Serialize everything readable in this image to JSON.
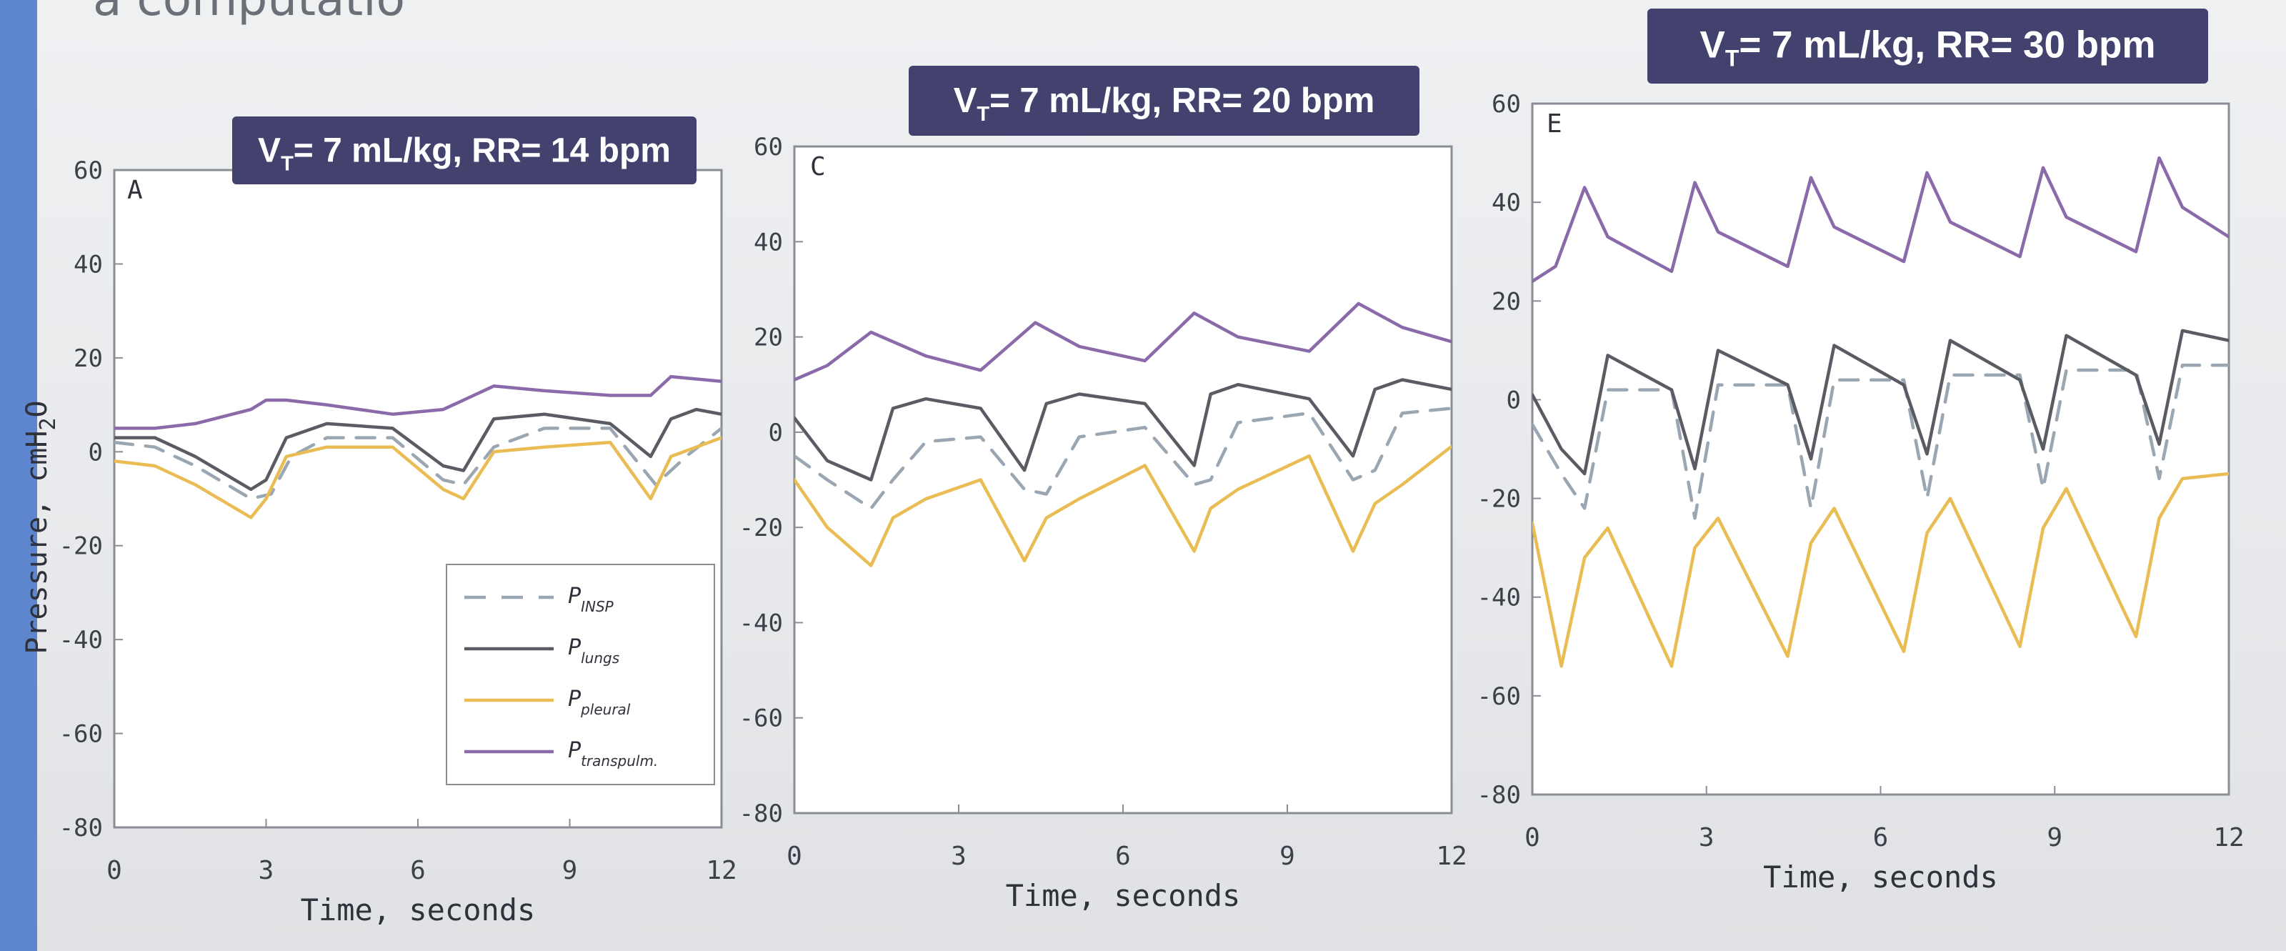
{
  "slide": {
    "cut_text": "a computatio",
    "accent_color": "#5d86cf",
    "badge_color": "#43416e"
  },
  "colors": {
    "P_INSP": "#9aa7b3",
    "P_lungs": "#5b5b63",
    "P_pleural": "#e9bd53",
    "P_transpulm": "#8a6aa8"
  },
  "chart_data": [
    {
      "type": "line",
      "panel": "A",
      "badge": "V_T= 7 mL/kg, RR= 14 bpm",
      "ylabel": "Pressure, cmH2O",
      "xlabel": "Time, seconds",
      "xlim": [
        0,
        12
      ],
      "ylim": [
        -80,
        60
      ],
      "xticks": [
        "0",
        "3",
        "6",
        "9",
        "12"
      ],
      "yticks": [
        "-80",
        "-60",
        "-40",
        "-20",
        "0",
        "20",
        "40",
        "60"
      ],
      "grid": false,
      "legend": {
        "placement": "lower-right",
        "entries": [
          "P_INSP",
          "P_lungs",
          "P_pleural",
          "P_transpulm."
        ]
      },
      "series": [
        {
          "name": "P_INSP",
          "style": "dashed",
          "x": [
            0,
            0.8,
            1.6,
            2.7,
            3.1,
            3.5,
            4.2,
            5.5,
            6.5,
            6.9,
            7.5,
            8.5,
            9.8,
            10.7,
            11.3,
            12
          ],
          "values": [
            2,
            1,
            -3,
            -10,
            -9,
            -1,
            3,
            3,
            -6,
            -7,
            1,
            5,
            5,
            -7,
            -1,
            5
          ]
        },
        {
          "name": "P_lungs",
          "style": "solid",
          "x": [
            0,
            0.8,
            1.6,
            2.7,
            3.0,
            3.4,
            4.2,
            5.5,
            6.5,
            6.9,
            7.5,
            8.5,
            9.8,
            10.6,
            11.0,
            11.5,
            12
          ],
          "values": [
            3,
            3,
            -1,
            -8,
            -6,
            3,
            6,
            5,
            -3,
            -4,
            7,
            8,
            6,
            -1,
            7,
            9,
            8
          ]
        },
        {
          "name": "P_pleural",
          "style": "solid",
          "x": [
            0,
            0.8,
            1.6,
            2.7,
            3.0,
            3.4,
            4.2,
            5.5,
            6.5,
            6.9,
            7.5,
            8.5,
            9.8,
            10.6,
            11.0,
            12
          ],
          "values": [
            -2,
            -3,
            -7,
            -14,
            -10,
            -1,
            1,
            1,
            -8,
            -10,
            0,
            1,
            2,
            -10,
            -1,
            3
          ]
        },
        {
          "name": "P_transpulm.",
          "style": "solid",
          "x": [
            0,
            0.8,
            1.6,
            2.7,
            3.0,
            3.4,
            4.2,
            5.5,
            6.5,
            6.9,
            7.5,
            8.5,
            9.8,
            10.6,
            11.0,
            12
          ],
          "values": [
            5,
            5,
            6,
            9,
            11,
            11,
            10,
            8,
            9,
            11,
            14,
            13,
            12,
            12,
            16,
            15
          ]
        }
      ]
    },
    {
      "type": "line",
      "panel": "C",
      "badge": "V_T= 7 mL/kg, RR= 20 bpm",
      "xlabel": "Time, seconds",
      "xlim": [
        0,
        12
      ],
      "ylim": [
        -80,
        60
      ],
      "xticks": [
        "0",
        "3",
        "6",
        "9",
        "12"
      ],
      "yticks": [
        "-80",
        "-60",
        "-40",
        "-20",
        "0",
        "20",
        "40",
        "60"
      ],
      "grid": false,
      "series": [
        {
          "name": "P_INSP",
          "style": "dashed",
          "x": [
            0,
            0.6,
            1.4,
            1.8,
            2.4,
            3.4,
            4.2,
            4.6,
            5.2,
            6.4,
            7.3,
            7.6,
            8.1,
            9.4,
            10.2,
            10.6,
            11.1,
            12
          ],
          "values": [
            -5,
            -10,
            -16,
            -10,
            -2,
            -1,
            -12,
            -13,
            -1,
            1,
            -11,
            -10,
            2,
            4,
            -10,
            -8,
            4,
            5
          ]
        },
        {
          "name": "P_lungs",
          "style": "solid",
          "x": [
            0,
            0.6,
            1.4,
            1.8,
            2.4,
            3.4,
            4.2,
            4.6,
            5.2,
            6.4,
            7.3,
            7.6,
            8.1,
            9.4,
            10.2,
            10.6,
            11.1,
            12
          ],
          "values": [
            3,
            -6,
            -10,
            5,
            7,
            5,
            -8,
            6,
            8,
            6,
            -7,
            8,
            10,
            7,
            -5,
            9,
            11,
            9
          ]
        },
        {
          "name": "P_pleural",
          "style": "solid",
          "x": [
            0,
            0.6,
            1.4,
            1.8,
            2.4,
            3.4,
            4.2,
            4.6,
            5.2,
            6.4,
            7.3,
            7.6,
            8.1,
            9.4,
            10.2,
            10.6,
            11.1,
            12
          ],
          "values": [
            -10,
            -20,
            -28,
            -18,
            -14,
            -10,
            -27,
            -18,
            -14,
            -7,
            -25,
            -16,
            -12,
            -5,
            -25,
            -15,
            -11,
            -3
          ]
        },
        {
          "name": "P_transpulm.",
          "style": "solid",
          "x": [
            0,
            0.6,
            1.4,
            2.4,
            3.4,
            4.4,
            5.2,
            6.4,
            7.3,
            8.1,
            9.4,
            10.3,
            11.1,
            12
          ],
          "values": [
            11,
            14,
            21,
            16,
            13,
            23,
            18,
            15,
            25,
            20,
            17,
            27,
            22,
            19
          ]
        }
      ]
    },
    {
      "type": "line",
      "panel": "E",
      "badge": "V_T= 7 mL/kg, RR= 30 bpm",
      "xlabel": "Time, seconds",
      "xlim": [
        0,
        12
      ],
      "ylim": [
        -80,
        60
      ],
      "xticks": [
        "0",
        "3",
        "6",
        "9",
        "12"
      ],
      "yticks": [
        "-80",
        "-60",
        "-40",
        "-20",
        "0",
        "20",
        "40",
        "60"
      ],
      "grid": false,
      "series": [
        {
          "name": "P_INSP",
          "style": "dashed",
          "x": [
            0,
            0.5,
            0.9,
            1.3,
            2.4,
            2.8,
            3.2,
            4.4,
            4.8,
            5.2,
            6.4,
            6.8,
            7.2,
            8.4,
            8.8,
            9.2,
            10.4,
            10.8,
            11.2,
            12
          ],
          "values": [
            -5,
            -15,
            -22,
            2,
            2,
            -24,
            3,
            3,
            -22,
            4,
            4,
            -20,
            5,
            5,
            -18,
            6,
            6,
            -16,
            7,
            7
          ]
        },
        {
          "name": "P_lungs",
          "style": "solid",
          "x": [
            0,
            0.5,
            0.9,
            1.3,
            2.4,
            2.8,
            3.2,
            4.4,
            4.8,
            5.2,
            6.4,
            6.8,
            7.2,
            8.4,
            8.8,
            9.2,
            10.4,
            10.8,
            11.2,
            12
          ],
          "values": [
            1,
            -10,
            -15,
            9,
            2,
            -14,
            10,
            3,
            -12,
            11,
            3,
            -11,
            12,
            4,
            -10,
            13,
            5,
            -9,
            14,
            12
          ]
        },
        {
          "name": "P_pleural",
          "style": "solid",
          "x": [
            0,
            0.5,
            0.9,
            1.3,
            2.4,
            2.8,
            3.2,
            4.4,
            4.8,
            5.2,
            6.4,
            6.8,
            7.2,
            8.4,
            8.8,
            9.2,
            10.4,
            10.8,
            11.2,
            12
          ],
          "values": [
            -25,
            -54,
            -32,
            -26,
            -54,
            -30,
            -24,
            -52,
            -29,
            -22,
            -51,
            -27,
            -20,
            -50,
            -26,
            -18,
            -48,
            -24,
            -16,
            -15
          ]
        },
        {
          "name": "P_transpulm.",
          "style": "solid",
          "x": [
            0,
            0.4,
            0.9,
            1.3,
            2.4,
            2.8,
            3.2,
            4.4,
            4.8,
            5.2,
            6.4,
            6.8,
            7.2,
            8.4,
            8.8,
            9.2,
            10.4,
            10.8,
            11.2,
            12
          ],
          "values": [
            24,
            27,
            43,
            33,
            26,
            44,
            34,
            27,
            45,
            35,
            28,
            46,
            36,
            29,
            47,
            37,
            30,
            49,
            39,
            33
          ]
        }
      ]
    }
  ]
}
